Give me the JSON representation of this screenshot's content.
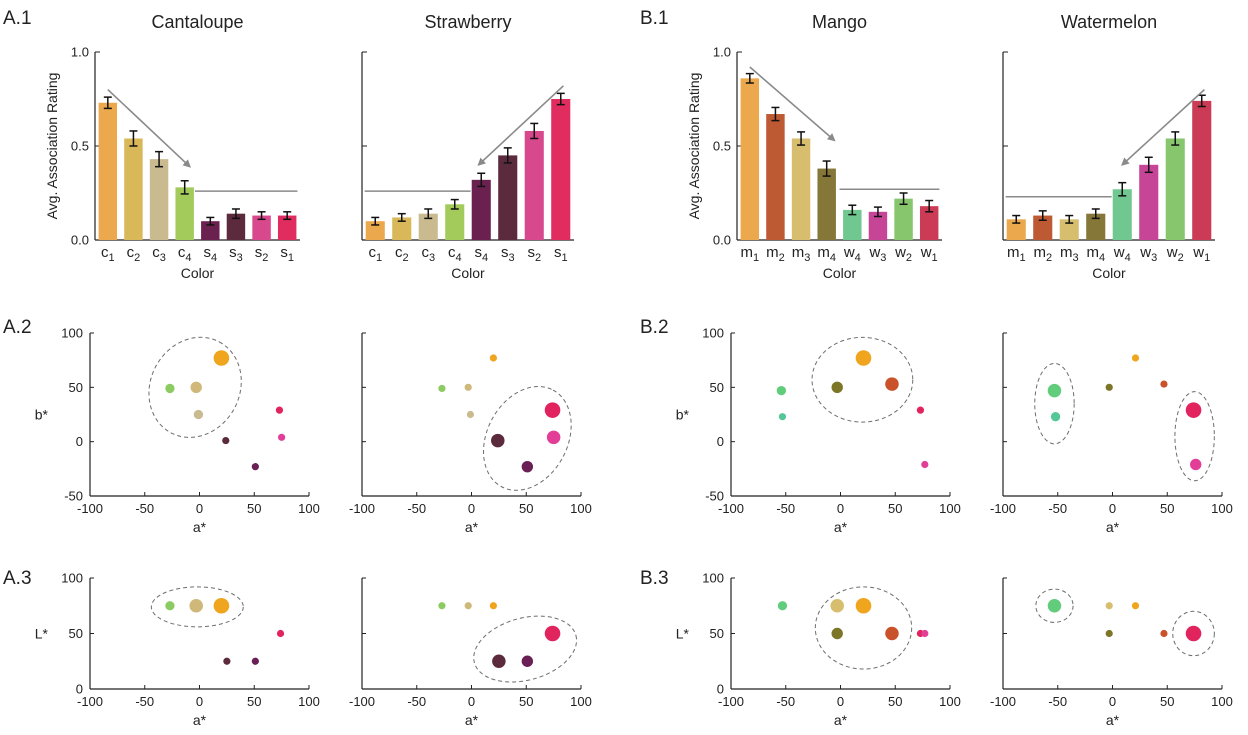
{
  "panel_labels": [
    "A.1",
    "A.2",
    "A.3",
    "B.1",
    "B.2",
    "B.3"
  ],
  "chart_data": [
    {
      "id": "bar-cantaloupe",
      "type": "bar",
      "title": "Cantaloupe",
      "xlabel": "Color",
      "ylabel": "Avg. Association Rating",
      "ylim": [
        0,
        1
      ],
      "yticks": [
        "0.0",
        "0.5",
        "1.0"
      ],
      "categories": [
        [
          "c",
          "1"
        ],
        [
          "c",
          "2"
        ],
        [
          "c",
          "3"
        ],
        [
          "c",
          "4"
        ],
        [
          "s",
          "4"
        ],
        [
          "s",
          "3"
        ],
        [
          "s",
          "2"
        ],
        [
          "s",
          "1"
        ]
      ],
      "values": [
        0.73,
        0.54,
        0.43,
        0.28,
        0.1,
        0.14,
        0.13,
        0.13
      ],
      "errors": [
        0.03,
        0.04,
        0.04,
        0.035,
        0.02,
        0.025,
        0.02,
        0.02
      ],
      "colors": [
        "#EBA84C",
        "#D9B85A",
        "#C9BA8F",
        "#A2CB5B",
        "#6B2150",
        "#5B2A3C",
        "#D8488D",
        "#E12C60"
      ],
      "arrow": {
        "from": [
          0,
          0.8
        ],
        "to": [
          3.2,
          0.39
        ]
      },
      "line": {
        "x": [
          3.4,
          7.4
        ],
        "y": 0.26
      }
    },
    {
      "id": "bar-strawberry",
      "type": "bar",
      "title": "Strawberry",
      "xlabel": "Color",
      "ylabel": "",
      "ylim": [
        0,
        1
      ],
      "yticks": [
        "",
        "",
        ""
      ],
      "categories": [
        [
          "c",
          "1"
        ],
        [
          "c",
          "2"
        ],
        [
          "c",
          "3"
        ],
        [
          "c",
          "4"
        ],
        [
          "s",
          "4"
        ],
        [
          "s",
          "3"
        ],
        [
          "s",
          "2"
        ],
        [
          "s",
          "1"
        ]
      ],
      "values": [
        0.1,
        0.12,
        0.14,
        0.19,
        0.32,
        0.45,
        0.58,
        0.75
      ],
      "errors": [
        0.02,
        0.02,
        0.025,
        0.025,
        0.035,
        0.04,
        0.04,
        0.03
      ],
      "colors": [
        "#EBA84C",
        "#D9B85A",
        "#C9BA8F",
        "#A2CB5B",
        "#6B2150",
        "#5B2A3C",
        "#D8488D",
        "#E12C60"
      ],
      "arrow": {
        "from": [
          7.1,
          0.82
        ],
        "to": [
          3.9,
          0.4
        ]
      },
      "line": {
        "x": [
          -0.4,
          3.6
        ],
        "y": 0.26
      }
    },
    {
      "id": "bar-mango",
      "type": "bar",
      "title": "Mango",
      "xlabel": "Color",
      "ylabel": "Avg. Association Rating",
      "ylim": [
        0,
        1
      ],
      "yticks": [
        "0.0",
        "0.5",
        "1.0"
      ],
      "categories": [
        [
          "m",
          "1"
        ],
        [
          "m",
          "2"
        ],
        [
          "m",
          "3"
        ],
        [
          "m",
          "4"
        ],
        [
          "w",
          "4"
        ],
        [
          "w",
          "3"
        ],
        [
          "w",
          "2"
        ],
        [
          "w",
          "1"
        ]
      ],
      "values": [
        0.86,
        0.67,
        0.54,
        0.38,
        0.16,
        0.15,
        0.22,
        0.18
      ],
      "errors": [
        0.025,
        0.035,
        0.035,
        0.04,
        0.025,
        0.025,
        0.03,
        0.03
      ],
      "colors": [
        "#EBA84C",
        "#BE5A33",
        "#D7BE6E",
        "#857738",
        "#70C890",
        "#C64597",
        "#88C66E",
        "#CC3B55"
      ],
      "arrow": {
        "from": [
          0,
          0.92
        ],
        "to": [
          3.3,
          0.53
        ]
      },
      "line": {
        "x": [
          3.5,
          7.4
        ],
        "y": 0.27
      }
    },
    {
      "id": "bar-watermelon",
      "type": "bar",
      "title": "Watermelon",
      "xlabel": "Color",
      "ylabel": "",
      "ylim": [
        0,
        1
      ],
      "yticks": [
        "",
        "",
        ""
      ],
      "categories": [
        [
          "m",
          "1"
        ],
        [
          "m",
          "2"
        ],
        [
          "m",
          "3"
        ],
        [
          "m",
          "4"
        ],
        [
          "w",
          "4"
        ],
        [
          "w",
          "3"
        ],
        [
          "w",
          "2"
        ],
        [
          "w",
          "1"
        ]
      ],
      "values": [
        0.11,
        0.13,
        0.11,
        0.14,
        0.27,
        0.4,
        0.54,
        0.74
      ],
      "errors": [
        0.02,
        0.025,
        0.02,
        0.025,
        0.035,
        0.04,
        0.035,
        0.03
      ],
      "colors": [
        "#EBA84C",
        "#BE5A33",
        "#D7BE6E",
        "#857738",
        "#70C890",
        "#C64597",
        "#88C66E",
        "#CC3B55"
      ],
      "arrow": {
        "from": [
          7.1,
          0.8
        ],
        "to": [
          4.0,
          0.4
        ]
      },
      "line": {
        "x": [
          -0.4,
          3.6
        ],
        "y": 0.23
      }
    },
    {
      "id": "scatter-a2-left",
      "type": "scatter",
      "xlabel": "a*",
      "ylabel": "b*",
      "xlim": [
        -100,
        100
      ],
      "ylim": [
        -50,
        100
      ],
      "xticks": [
        -100,
        -50,
        0,
        50,
        100
      ],
      "yticks": [
        -50,
        0,
        50,
        100
      ],
      "show_yticks": true,
      "points": [
        {
          "x": 20,
          "y": 77,
          "size": 3,
          "color": "#F0A51E"
        },
        {
          "x": -3,
          "y": 50,
          "size": 2,
          "color": "#CFB879"
        },
        {
          "x": -27,
          "y": 49,
          "size": 1.5,
          "color": "#8CCB62"
        },
        {
          "x": -1,
          "y": 25,
          "size": 1.5,
          "color": "#C9BA8F"
        },
        {
          "x": 73,
          "y": 29,
          "size": 1,
          "color": "#E2245E"
        },
        {
          "x": 75,
          "y": 4,
          "size": 1,
          "color": "#E23E98"
        },
        {
          "x": 24,
          "y": 1,
          "size": 1,
          "color": "#5B2A3C"
        },
        {
          "x": 51,
          "y": -23,
          "size": 1,
          "color": "#6A1F55"
        }
      ],
      "ellipses": [
        {
          "cx": -4,
          "cy": 50,
          "rx": 47,
          "ry": 41,
          "angle": -62
        }
      ]
    },
    {
      "id": "scatter-a2-right",
      "type": "scatter",
      "xlabel": "a*",
      "ylabel": "",
      "xlim": [
        -100,
        100
      ],
      "ylim": [
        -50,
        100
      ],
      "xticks": [
        -100,
        -50,
        0,
        50,
        100
      ],
      "yticks": [
        -50,
        0,
        50,
        100
      ],
      "show_yticks": false,
      "points": [
        {
          "x": 20,
          "y": 77,
          "size": 1,
          "color": "#F0A51E"
        },
        {
          "x": -27,
          "y": 49,
          "size": 1,
          "color": "#8CCB62"
        },
        {
          "x": -3,
          "y": 50,
          "size": 1,
          "color": "#CFB879"
        },
        {
          "x": -1,
          "y": 25,
          "size": 1,
          "color": "#C9BA8F"
        },
        {
          "x": 74,
          "y": 29,
          "size": 3,
          "color": "#E2245E"
        },
        {
          "x": 75,
          "y": 4,
          "size": 2.5,
          "color": "#E23E98"
        },
        {
          "x": 24,
          "y": 1,
          "size": 2.5,
          "color": "#5B2A3C"
        },
        {
          "x": 51,
          "y": -23,
          "size": 2,
          "color": "#6A1F55"
        }
      ],
      "ellipses": [
        {
          "cx": 51,
          "cy": 3,
          "rx": 50,
          "ry": 37,
          "angle": -62
        }
      ]
    },
    {
      "id": "scatter-a3-left",
      "type": "scatter",
      "xlabel": "a*",
      "ylabel": "L*",
      "xlim": [
        -100,
        100
      ],
      "ylim": [
        0,
        100
      ],
      "xticks": [
        -100,
        -50,
        0,
        50,
        100
      ],
      "yticks": [
        0,
        50,
        100
      ],
      "show_yticks": true,
      "points": [
        {
          "x": 20,
          "y": 75,
          "size": 3,
          "color": "#F0A51E"
        },
        {
          "x": -3,
          "y": 75,
          "size": 2.5,
          "color": "#CFB879"
        },
        {
          "x": -27,
          "y": 75,
          "size": 1.5,
          "color": "#8CCB62"
        },
        {
          "x": 74,
          "y": 50,
          "size": 1,
          "color": "#E2245E"
        },
        {
          "x": 25,
          "y": 25,
          "size": 1,
          "color": "#5B2A3C"
        },
        {
          "x": 51,
          "y": 25,
          "size": 1,
          "color": "#6A1F55"
        }
      ],
      "ellipses": [
        {
          "cx": -2,
          "cy": 74,
          "rx": 42,
          "ry": 18,
          "angle": 0
        }
      ]
    },
    {
      "id": "scatter-a3-right",
      "type": "scatter",
      "xlabel": "a*",
      "ylabel": "",
      "xlim": [
        -100,
        100
      ],
      "ylim": [
        0,
        100
      ],
      "xticks": [
        -100,
        -50,
        0,
        50,
        100
      ],
      "yticks": [
        0,
        50,
        100
      ],
      "show_yticks": false,
      "points": [
        {
          "x": -27,
          "y": 75,
          "size": 1,
          "color": "#8CCB62"
        },
        {
          "x": -3,
          "y": 75,
          "size": 1,
          "color": "#CFB879"
        },
        {
          "x": 20,
          "y": 75,
          "size": 1,
          "color": "#F0A51E"
        },
        {
          "x": 74,
          "y": 50,
          "size": 3,
          "color": "#E2245E"
        },
        {
          "x": 25,
          "y": 25,
          "size": 2.5,
          "color": "#5B2A3C"
        },
        {
          "x": 51,
          "y": 25,
          "size": 2,
          "color": "#6A1F55"
        }
      ],
      "ellipses": [
        {
          "cx": 49,
          "cy": 36,
          "rx": 48,
          "ry": 28,
          "angle": -15
        }
      ]
    },
    {
      "id": "scatter-b2-left",
      "type": "scatter",
      "xlabel": "a*",
      "ylabel": "b*",
      "xlim": [
        -100,
        100
      ],
      "ylim": [
        -50,
        100
      ],
      "xticks": [
        -100,
        -50,
        0,
        50,
        100
      ],
      "yticks": [
        -50,
        0,
        50,
        100
      ],
      "show_yticks": true,
      "points": [
        {
          "x": 21,
          "y": 77,
          "size": 3,
          "color": "#F0A51E"
        },
        {
          "x": 47,
          "y": 53,
          "size": 2.5,
          "color": "#C9522A"
        },
        {
          "x": -3,
          "y": 50,
          "size": 2,
          "color": "#7D7627"
        },
        {
          "x": -54,
          "y": 47,
          "size": 1.5,
          "color": "#61CC7B"
        },
        {
          "x": -53,
          "y": 23,
          "size": 1,
          "color": "#55C696"
        },
        {
          "x": 73,
          "y": 29,
          "size": 1,
          "color": "#E2245E"
        },
        {
          "x": 77,
          "y": -21,
          "size": 1,
          "color": "#E23E98"
        }
      ],
      "ellipses": [
        {
          "cx": 20,
          "cy": 57,
          "rx": 46,
          "ry": 39,
          "angle": 0
        }
      ]
    },
    {
      "id": "scatter-b2-right",
      "type": "scatter",
      "xlabel": "a*",
      "ylabel": "",
      "xlim": [
        -100,
        100
      ],
      "ylim": [
        -50,
        100
      ],
      "xticks": [
        -100,
        -50,
        0,
        50,
        100
      ],
      "yticks": [
        -50,
        0,
        50,
        100
      ],
      "show_yticks": false,
      "points": [
        {
          "x": 21,
          "y": 77,
          "size": 1,
          "color": "#F0A51E"
        },
        {
          "x": -3,
          "y": 50,
          "size": 1,
          "color": "#7D7627"
        },
        {
          "x": 47,
          "y": 53,
          "size": 1,
          "color": "#C9522A"
        },
        {
          "x": -53,
          "y": 47,
          "size": 2.5,
          "color": "#61CC7B"
        },
        {
          "x": -52,
          "y": 23,
          "size": 1.5,
          "color": "#55C696"
        },
        {
          "x": 74,
          "y": 29,
          "size": 3,
          "color": "#E2245E"
        },
        {
          "x": 76,
          "y": -21,
          "size": 2,
          "color": "#E23E98"
        }
      ],
      "ellipses": [
        {
          "cx": -53,
          "cy": 35,
          "rx": 18,
          "ry": 37,
          "angle": 0
        },
        {
          "cx": 75,
          "cy": 5,
          "rx": 18,
          "ry": 41,
          "angle": 0
        }
      ]
    },
    {
      "id": "scatter-b3-left",
      "type": "scatter",
      "xlabel": "a*",
      "ylabel": "L*",
      "xlim": [
        -100,
        100
      ],
      "ylim": [
        0,
        100
      ],
      "xticks": [
        -100,
        -50,
        0,
        50,
        100
      ],
      "yticks": [
        0,
        50,
        100
      ],
      "show_yticks": true,
      "points": [
        {
          "x": -53,
          "y": 75,
          "size": 1.5,
          "color": "#61CC7B"
        },
        {
          "x": -3,
          "y": 75,
          "size": 2.5,
          "color": "#D7BE6E"
        },
        {
          "x": 21,
          "y": 75,
          "size": 3,
          "color": "#F0A51E"
        },
        {
          "x": -3,
          "y": 50,
          "size": 2,
          "color": "#7D7627"
        },
        {
          "x": 47,
          "y": 50,
          "size": 2.5,
          "color": "#C9522A"
        },
        {
          "x": 73,
          "y": 50,
          "size": 1,
          "color": "#E2245E"
        },
        {
          "x": 77,
          "y": 50,
          "size": 1,
          "color": "#E23E98"
        }
      ],
      "ellipses": [
        {
          "cx": 21,
          "cy": 55,
          "rx": 44,
          "ry": 37,
          "angle": 0
        }
      ]
    },
    {
      "id": "scatter-b3-right",
      "type": "scatter",
      "xlabel": "a*",
      "ylabel": "",
      "xlim": [
        -100,
        100
      ],
      "ylim": [
        0,
        100
      ],
      "xticks": [
        -100,
        -50,
        0,
        50,
        100
      ],
      "yticks": [
        0,
        50,
        100
      ],
      "show_yticks": false,
      "points": [
        {
          "x": -53,
          "y": 75,
          "size": 2.5,
          "color": "#61CC7B"
        },
        {
          "x": -3,
          "y": 75,
          "size": 1,
          "color": "#D7BE6E"
        },
        {
          "x": 21,
          "y": 75,
          "size": 1,
          "color": "#F0A51E"
        },
        {
          "x": -3,
          "y": 50,
          "size": 1,
          "color": "#7D7627"
        },
        {
          "x": 47,
          "y": 50,
          "size": 1,
          "color": "#C9522A"
        },
        {
          "x": 74,
          "y": 50,
          "size": 3,
          "color": "#E2245E"
        }
      ],
      "ellipses": [
        {
          "cx": -53,
          "cy": 75,
          "rx": 17,
          "ry": 15,
          "angle": 0
        },
        {
          "cx": 74,
          "cy": 50,
          "rx": 19,
          "ry": 20,
          "angle": 0
        }
      ]
    }
  ]
}
